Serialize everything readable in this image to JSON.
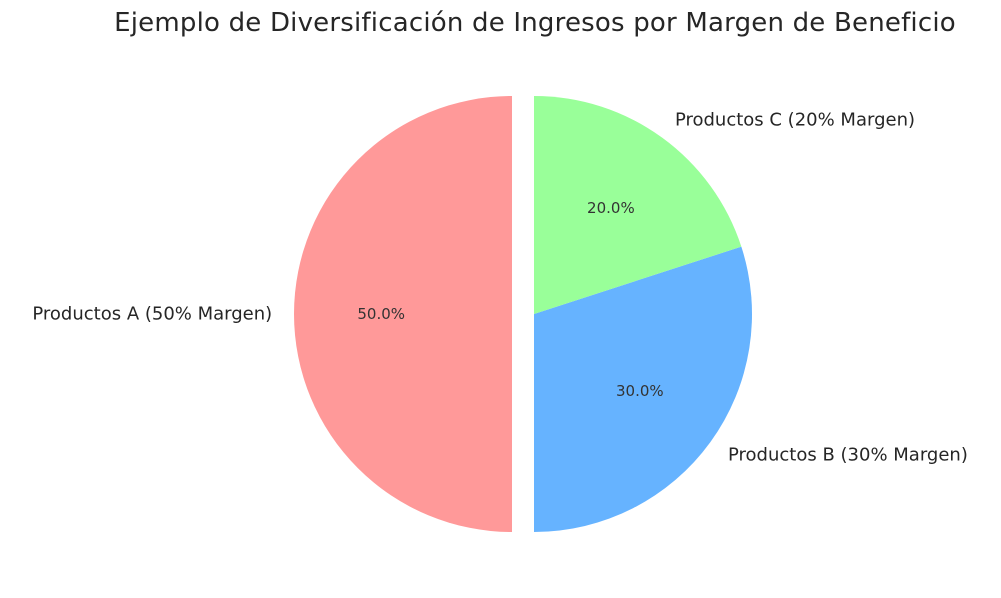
{
  "chart_data": {
    "type": "pie",
    "title": "Ejemplo de Diversificación de Ingresos por Margen de Beneficio",
    "categories": [
      "Productos A (50% Margen)",
      "Productos B (30% Margen)",
      "Productos C (20% Margen)"
    ],
    "values": [
      50,
      30,
      20
    ],
    "percent_labels": [
      "50.0%",
      "30.0%",
      "20.0%"
    ],
    "colors": [
      "#ff9999",
      "#66b3ff",
      "#99ff99"
    ],
    "exploded": [
      true,
      false,
      false
    ],
    "start_angle_deg": 90,
    "direction": "counterclockwise",
    "legend": "none"
  }
}
